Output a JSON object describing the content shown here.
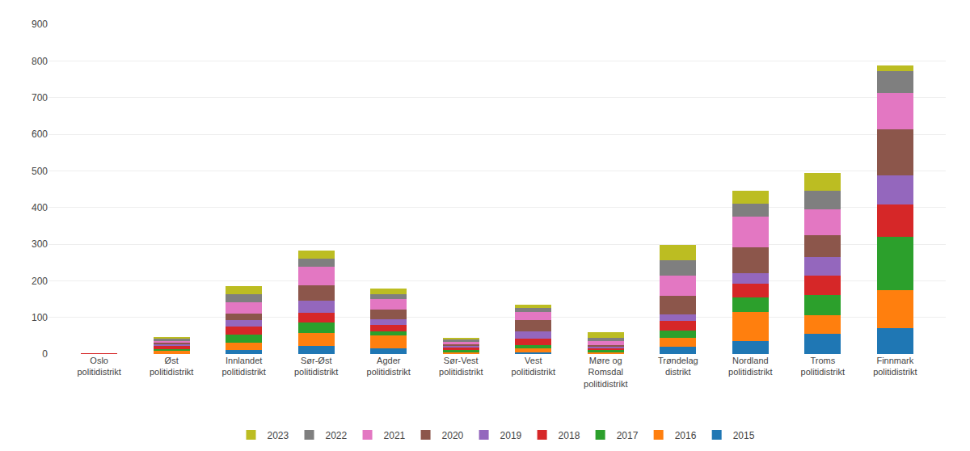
{
  "chart_data": {
    "type": "bar",
    "stacked": true,
    "categories": [
      "Oslo\npolitidistrikt",
      "Øst\npolitidistrikt",
      "Innlandet\npolitidistrikt",
      "Sør-Øst\npolitidistrikt",
      "Agder\npolitidistrikt",
      "Sør-Vest\npolitidistrikt",
      "Vest\npolitidistrikt",
      "Møre og\nRomsdal\npolitidistrikt",
      "Trøndelag\ndistrikt",
      "Nordland\npolitidistrikt",
      "Troms\npolitidistrikt",
      "Finnmark\npolitidistrikt"
    ],
    "series": [
      {
        "name": "2015",
        "values": [
          0,
          0,
          10,
          22,
          15,
          0,
          5,
          0,
          20,
          35,
          55,
          70
        ]
      },
      {
        "name": "2016",
        "values": [
          0,
          8,
          20,
          35,
          35,
          5,
          10,
          5,
          25,
          80,
          50,
          105
        ]
      },
      {
        "name": "2017",
        "values": [
          0,
          5,
          22,
          28,
          12,
          5,
          10,
          5,
          18,
          40,
          55,
          145
        ]
      },
      {
        "name": "2018",
        "values": [
          1,
          8,
          22,
          28,
          18,
          8,
          18,
          5,
          28,
          38,
          55,
          88
        ]
      },
      {
        "name": "2019",
        "values": [
          0,
          5,
          18,
          32,
          14,
          4,
          18,
          5,
          18,
          28,
          50,
          80
        ]
      },
      {
        "name": "2020",
        "values": [
          0,
          5,
          18,
          42,
          28,
          5,
          32,
          5,
          50,
          70,
          60,
          125
        ]
      },
      {
        "name": "2021",
        "values": [
          0,
          5,
          32,
          52,
          28,
          7,
          22,
          10,
          55,
          85,
          70,
          100
        ]
      },
      {
        "name": "2022",
        "values": [
          0,
          5,
          22,
          22,
          14,
          5,
          10,
          10,
          42,
          35,
          50,
          60
        ]
      },
      {
        "name": "2023",
        "values": [
          0,
          5,
          22,
          22,
          14,
          5,
          10,
          14,
          42,
          35,
          50,
          15
        ]
      }
    ],
    "ylim": [
      0,
      900
    ],
    "yticks": [
      0,
      100,
      200,
      300,
      400,
      500,
      600,
      700,
      800,
      900
    ],
    "grid": true,
    "legend": "bottom"
  }
}
